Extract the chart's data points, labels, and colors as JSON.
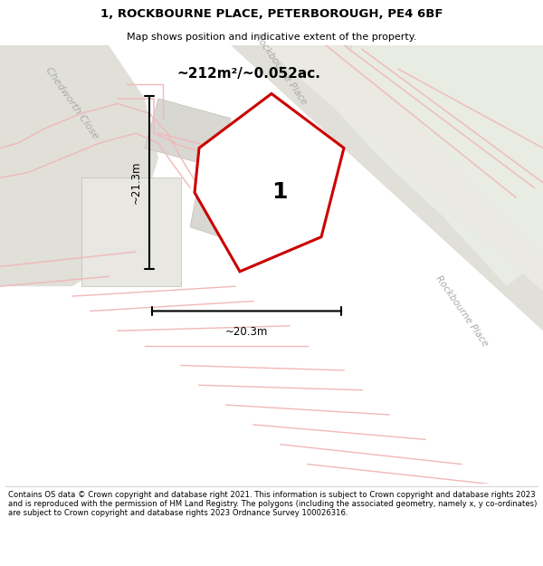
{
  "title": "1, ROCKBOURNE PLACE, PETERBOROUGH, PE4 6BF",
  "subtitle": "Map shows position and indicative extent of the property.",
  "footer": "Contains OS data © Crown copyright and database right 2021. This information is subject to Crown copyright and database rights 2023 and is reproduced with the permission of HM Land Registry. The polygons (including the associated geometry, namely x, y co-ordinates) are subject to Crown copyright and database rights 2023 Ordnance Survey 100026316.",
  "area_label": "~212m²/~0.052ac.",
  "plot_number": "1",
  "dim_height": "~21.3m",
  "dim_width": "~20.3m",
  "bg_color": "#f2f1ee",
  "road_color": "#e0dfd8",
  "green_color": "#e8ece3",
  "building_color": "#d8d7d2",
  "plot_fill": "#ffffff",
  "plot_edge": "#cc0000",
  "pink": "#f0b8b8",
  "gray_label": "#aaaaaa",
  "street1": "Chedworth Close",
  "street2": "Rockbourne Place",
  "street3": "Rockbourne Place"
}
